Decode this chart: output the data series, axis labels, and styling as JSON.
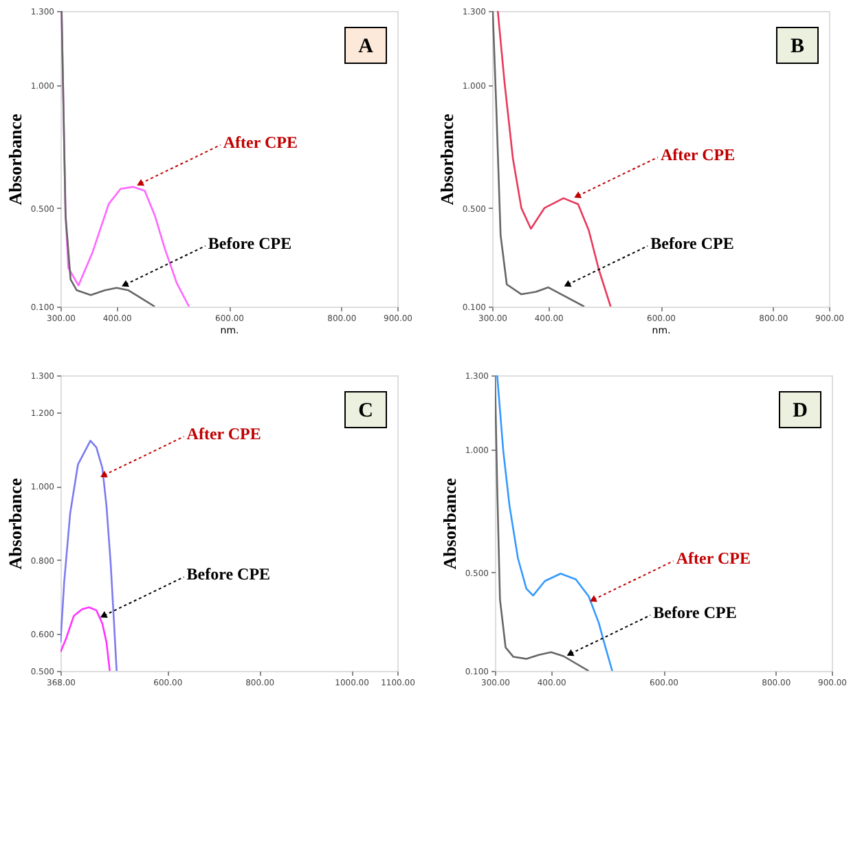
{
  "chart_data": [
    {
      "type": "line",
      "ylabel": "Absorbance",
      "xlabel": "nm.",
      "xlim": [
        300,
        900
      ],
      "ylim": [
        0.1,
        1.3
      ],
      "xticks": [
        {
          "value": 300,
          "label": "300.00"
        },
        {
          "value": 400,
          "label": "400.00"
        },
        {
          "value": 600,
          "label": "600.00"
        },
        {
          "value": 800,
          "label": "800.00"
        },
        {
          "value": 900,
          "label": "900.00"
        }
      ],
      "yticks": [
        {
          "value": 0.1,
          "label": "0.100"
        },
        {
          "value": 0.5,
          "label": "0.500"
        },
        {
          "value": 1.0,
          "label": "1.000"
        },
        {
          "value": 1.3,
          "label": "1.300"
        }
      ],
      "grid": false,
      "line_style": "solid",
      "marker": "none",
      "series": [
        {
          "color": "#ff66ff",
          "x": [
            302,
            309,
            314,
            332,
            357,
            386,
            407,
            429,
            450,
            468,
            486,
            507,
            529
          ],
          "values": [
            1.3,
            0.47,
            0.257,
            0.186,
            0.32,
            0.517,
            0.578,
            0.586,
            0.57,
            0.47,
            0.334,
            0.196,
            0.1
          ]
        },
        {
          "color": "#666666",
          "x": [
            302,
            309,
            318,
            329,
            354,
            379,
            400,
            421,
            443,
            468
          ],
          "values": [
            1.3,
            0.47,
            0.21,
            0.166,
            0.147,
            0.166,
            0.176,
            0.166,
            0.135,
            0.1
          ]
        }
      ],
      "annotations": [
        {
          "text": "After CPE",
          "x": 443,
          "y": 0.6
        },
        {
          "text": "Before CPE",
          "x": 416,
          "y": 0.19
        },
        "A"
      ]
    },
    {
      "type": "line",
      "ylabel": "Absorbance",
      "xlabel": "nm.",
      "xlim": [
        300,
        900
      ],
      "ylim": [
        0.1,
        1.3
      ],
      "xticks": [
        {
          "value": 300,
          "label": "300.00"
        },
        {
          "value": 400,
          "label": "400.00"
        },
        {
          "value": 600,
          "label": "600.00"
        },
        {
          "value": 800,
          "label": "800.00"
        },
        {
          "value": 900,
          "label": "900.00"
        }
      ],
      "yticks": [
        {
          "value": 0.1,
          "label": "0.100"
        },
        {
          "value": 0.5,
          "label": "0.500"
        },
        {
          "value": 1.0,
          "label": "1.000"
        },
        {
          "value": 1.3,
          "label": "1.300"
        }
      ],
      "grid": false,
      "line_style": "solid",
      "marker": "none",
      "series": [
        {
          "color": "#e8385a",
          "x": [
            310,
            322,
            337,
            352,
            369,
            393,
            427,
            453,
            472,
            490,
            511
          ],
          "values": [
            1.3,
            1.01,
            0.7,
            0.5,
            0.416,
            0.5,
            0.54,
            0.516,
            0.41,
            0.25,
            0.1
          ]
        },
        {
          "color": "#666666",
          "x": [
            301,
            307,
            315,
            326,
            352,
            378,
            400,
            423,
            464
          ],
          "values": [
            1.3,
            0.93,
            0.39,
            0.19,
            0.15,
            0.16,
            0.178,
            0.15,
            0.1
          ]
        }
      ],
      "annotations": [
        {
          "text": "After CPE",
          "x": 453,
          "y": 0.55
        },
        {
          "text": "Before CPE",
          "x": 435,
          "y": 0.19
        },
        "B"
      ]
    },
    {
      "type": "line",
      "ylabel": "Absorbance",
      "xlim": [
        368,
        1100
      ],
      "ylim": [
        0.5,
        1.3
      ],
      "xticks": [
        {
          "value": 368,
          "label": "368.00"
        },
        {
          "value": 600,
          "label": "600.00"
        },
        {
          "value": 800,
          "label": "800.00"
        },
        {
          "value": 1000,
          "label": "1000.00"
        },
        {
          "value": 1100,
          "label": "1100.00"
        }
      ],
      "yticks": [
        {
          "value": 0.5,
          "label": "0.500"
        },
        {
          "value": 0.6,
          "label": "0.600"
        },
        {
          "value": 0.8,
          "label": "0.800"
        },
        {
          "value": 1.0,
          "label": "1.000"
        },
        {
          "value": 1.2,
          "label": "1.200"
        },
        {
          "value": 1.3,
          "label": "1.300"
        }
      ],
      "grid": false,
      "line_style": "solid",
      "marker": "none",
      "series": [
        {
          "color": "#7b7bef",
          "x": [
            368,
            376,
            389,
            406,
            433,
            446,
            459,
            468,
            477,
            484,
            490
          ],
          "values": [
            0.577,
            0.74,
            0.926,
            1.059,
            1.123,
            1.105,
            1.049,
            0.946,
            0.792,
            0.638,
            0.5
          ]
        },
        {
          "color": "#ff33ff",
          "x": [
            368,
            380,
            397,
            415,
            430,
            446,
            459,
            468,
            475
          ],
          "values": [
            0.551,
            0.587,
            0.649,
            0.667,
            0.672,
            0.664,
            0.628,
            0.577,
            0.5
          ]
        }
      ],
      "annotations": [
        {
          "text": "After CPE",
          "x": 463,
          "y": 1.03
        },
        {
          "text": "Before CPE",
          "x": 463,
          "y": 0.65
        },
        "C"
      ]
    },
    {
      "type": "line",
      "ylabel": "Absorbance",
      "xlim": [
        300,
        900
      ],
      "ylim": [
        0.1,
        1.3
      ],
      "xticks": [
        {
          "value": 300,
          "label": "300.00"
        },
        {
          "value": 400,
          "label": "400.00"
        },
        {
          "value": 600,
          "label": "600.00"
        },
        {
          "value": 800,
          "label": "800.00"
        },
        {
          "value": 900,
          "label": "900.00"
        }
      ],
      "yticks": [
        {
          "value": 0.1,
          "label": "0.100"
        },
        {
          "value": 0.5,
          "label": "0.500"
        },
        {
          "value": 1.0,
          "label": "1.000"
        },
        {
          "value": 1.3,
          "label": "1.300"
        }
      ],
      "grid": false,
      "line_style": "solid",
      "marker": "none",
      "series": [
        {
          "color": "#3399ff",
          "x": [
            304,
            315,
            326,
            341,
            356,
            368,
            389,
            417,
            444,
            467,
            485,
            496,
            509
          ],
          "values": [
            1.3,
            0.99,
            0.77,
            0.557,
            0.434,
            0.406,
            0.465,
            0.495,
            0.472,
            0.403,
            0.295,
            0.203,
            0.1
          ]
        },
        {
          "color": "#666666",
          "x": [
            300,
            304,
            309,
            319,
            333,
            356,
            378,
            400,
            422,
            467
          ],
          "values": [
            1.3,
            0.85,
            0.39,
            0.195,
            0.157,
            0.149,
            0.165,
            0.176,
            0.16,
            0.1
          ]
        }
      ],
      "annotations": [
        {
          "text": "After CPE",
          "x": 476,
          "y": 0.39
        },
        {
          "text": "Before CPE",
          "x": 435,
          "y": 0.17
        },
        "D"
      ]
    }
  ]
}
